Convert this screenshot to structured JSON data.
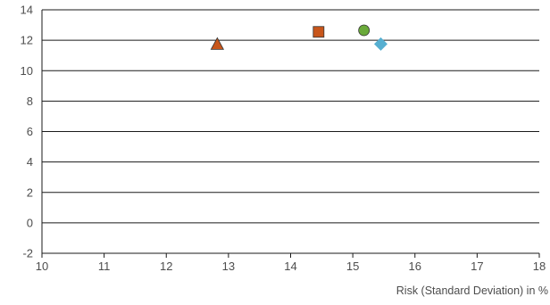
{
  "chart_data": {
    "type": "scatter",
    "title": "",
    "xlabel": "Risk (Standard Deviation) in %",
    "ylabel": "",
    "xlim": [
      10,
      18
    ],
    "ylim": [
      -2,
      14
    ],
    "x_ticks": [
      "10",
      "11",
      "12",
      "13",
      "14",
      "15",
      "16",
      "17",
      "18"
    ],
    "y_ticks": [
      "-2",
      "0",
      "2",
      "4",
      "6",
      "8",
      "10",
      "12",
      "14"
    ],
    "grid": "horizontal",
    "legend": "none",
    "series": [
      {
        "marker": "triangle",
        "color": "#c8561b",
        "x": 12.82,
        "y": 11.75
      },
      {
        "marker": "square",
        "color": "#c8561b",
        "x": 14.45,
        "y": 12.55
      },
      {
        "marker": "circle",
        "color": "#6aaa3a",
        "x": 15.18,
        "y": 12.65
      },
      {
        "marker": "diamond",
        "color": "#56afd1",
        "x": 15.45,
        "y": 11.75
      }
    ]
  }
}
